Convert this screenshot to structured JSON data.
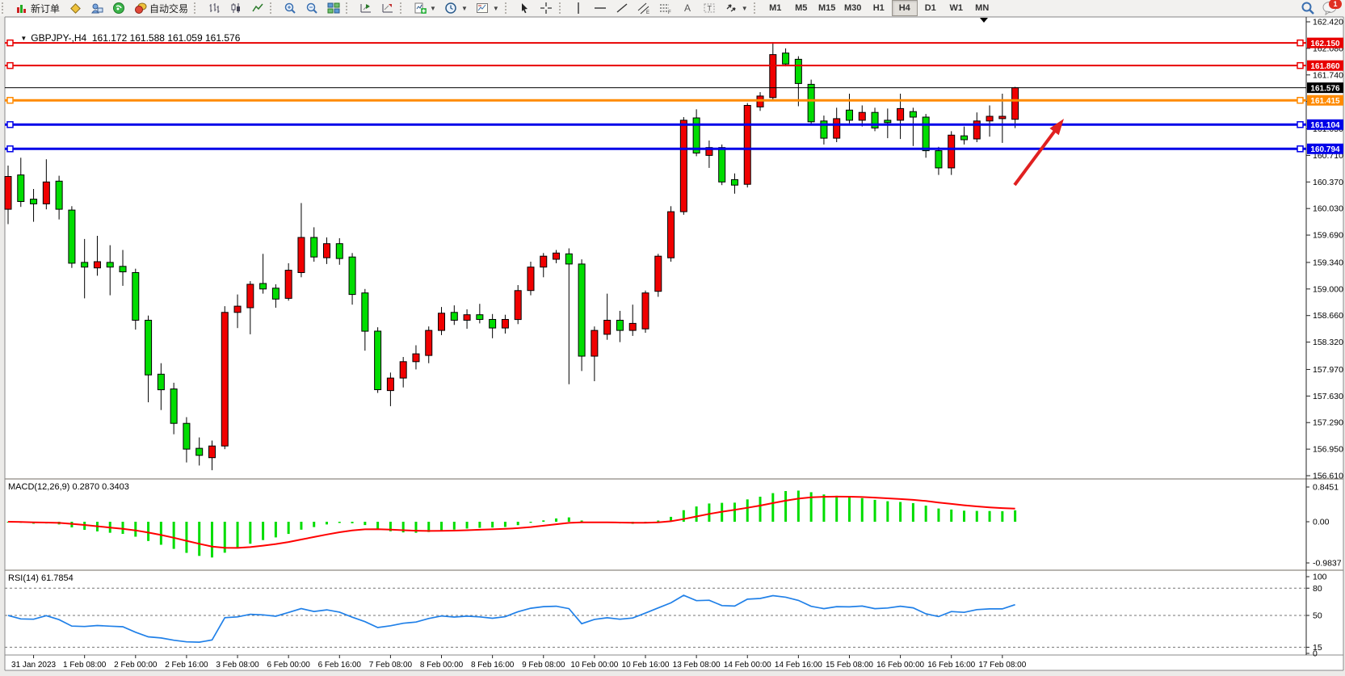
{
  "toolbar": {
    "new_order_label": "新订单",
    "autotrading_label": "自动交易",
    "timeframes": [
      "M1",
      "M5",
      "M15",
      "M30",
      "H1",
      "H4",
      "D1",
      "W1",
      "MN"
    ],
    "active_timeframe": "H4",
    "chat_badge": "1"
  },
  "chart": {
    "title": {
      "symbol": "GBPJPY-,H4",
      "ohlc": "161.172 161.588 161.059 161.576"
    },
    "macd_label": "MACD(12,26,9) 0.2870 0.3403",
    "rsi_label": "RSI(14) 61.7854"
  },
  "chart_data": {
    "type": "candlestick",
    "symbol": "GBPJPY-",
    "timeframe": "H4",
    "title": "GBPJPY- H4 chart with MACD and RSI",
    "ohlc_current": {
      "open": 161.172,
      "high": 161.588,
      "low": 161.059,
      "close": 161.576
    },
    "ylim": [
      156.61,
      162.42
    ],
    "grid": false,
    "bull_color": "#f00000",
    "bear_color": "#00dd00",
    "y_ticks": [
      "162.420",
      "162.080",
      "161.740",
      "161.400",
      "161.050",
      "160.710",
      "160.370",
      "160.030",
      "159.690",
      "159.340",
      "159.000",
      "158.660",
      "158.320",
      "157.970",
      "157.630",
      "157.290",
      "156.950",
      "156.610"
    ],
    "x_labels": [
      "31 Jan 2023",
      "1 Feb 08:00",
      "2 Feb 00:00",
      "2 Feb 16:00",
      "3 Feb 08:00",
      "6 Feb 00:00",
      "6 Feb 16:00",
      "7 Feb 08:00",
      "8 Feb 00:00",
      "8 Feb 16:00",
      "9 Feb 08:00",
      "10 Feb 00:00",
      "10 Feb 16:00",
      "13 Feb 08:00",
      "14 Feb 00:00",
      "14 Feb 16:00",
      "15 Feb 08:00",
      "16 Feb 00:00",
      "16 Feb 16:00",
      "17 Feb 08:00"
    ],
    "x_label_first_candle": 2,
    "x_label_step": 4,
    "candles": [
      [
        160.02,
        160.58,
        159.83,
        160.44
      ],
      [
        160.46,
        160.68,
        160.05,
        160.12
      ],
      [
        160.15,
        160.28,
        159.86,
        160.09
      ],
      [
        160.09,
        160.66,
        160.02,
        160.37
      ],
      [
        160.38,
        160.45,
        159.89,
        160.02
      ],
      [
        160.01,
        160.06,
        159.27,
        159.33
      ],
      [
        159.34,
        159.64,
        158.88,
        159.28
      ],
      [
        159.27,
        159.68,
        159.17,
        159.35
      ],
      [
        159.34,
        159.56,
        158.92,
        159.28
      ],
      [
        159.29,
        159.5,
        159.04,
        159.22
      ],
      [
        159.21,
        159.26,
        158.48,
        158.6
      ],
      [
        158.6,
        158.66,
        157.55,
        157.9
      ],
      [
        157.91,
        158.05,
        157.45,
        157.71
      ],
      [
        157.72,
        157.8,
        157.14,
        157.28
      ],
      [
        157.28,
        157.36,
        156.78,
        156.95
      ],
      [
        156.96,
        157.1,
        156.74,
        156.87
      ],
      [
        156.84,
        157.06,
        156.68,
        156.99
      ],
      [
        156.99,
        158.78,
        156.95,
        158.7
      ],
      [
        158.7,
        158.93,
        158.5,
        158.78
      ],
      [
        158.76,
        159.1,
        158.42,
        159.06
      ],
      [
        159.07,
        159.45,
        158.94,
        159.0
      ],
      [
        159.01,
        159.06,
        158.76,
        158.87
      ],
      [
        158.88,
        159.33,
        158.85,
        159.24
      ],
      [
        159.21,
        160.1,
        159.15,
        159.66
      ],
      [
        159.66,
        159.79,
        159.35,
        159.41
      ],
      [
        159.4,
        159.66,
        159.32,
        159.58
      ],
      [
        159.58,
        159.65,
        159.31,
        159.39
      ],
      [
        159.41,
        159.46,
        158.8,
        158.93
      ],
      [
        158.95,
        159.0,
        158.21,
        158.46
      ],
      [
        158.46,
        158.51,
        157.67,
        157.71
      ],
      [
        157.7,
        157.93,
        157.5,
        157.86
      ],
      [
        157.86,
        158.13,
        157.74,
        158.07
      ],
      [
        158.07,
        158.28,
        157.97,
        158.17
      ],
      [
        158.15,
        158.52,
        158.05,
        158.47
      ],
      [
        158.47,
        158.77,
        158.41,
        158.69
      ],
      [
        158.7,
        158.79,
        158.54,
        158.6
      ],
      [
        158.6,
        158.74,
        158.49,
        158.67
      ],
      [
        158.67,
        158.81,
        158.56,
        158.61
      ],
      [
        158.61,
        158.68,
        158.37,
        158.5
      ],
      [
        158.5,
        158.67,
        158.43,
        158.61
      ],
      [
        158.61,
        159.05,
        158.55,
        158.98
      ],
      [
        158.98,
        159.35,
        158.92,
        159.28
      ],
      [
        159.28,
        159.46,
        159.15,
        159.42
      ],
      [
        159.38,
        159.5,
        159.33,
        159.46
      ],
      [
        159.45,
        159.52,
        157.78,
        159.32
      ],
      [
        159.32,
        159.38,
        157.95,
        158.14
      ],
      [
        158.14,
        158.52,
        157.82,
        158.47
      ],
      [
        158.42,
        158.94,
        158.35,
        158.6
      ],
      [
        158.6,
        158.72,
        158.32,
        158.47
      ],
      [
        158.47,
        158.8,
        158.4,
        158.56
      ],
      [
        158.49,
        158.98,
        158.44,
        158.95
      ],
      [
        158.97,
        159.45,
        158.9,
        159.42
      ],
      [
        159.4,
        160.06,
        159.35,
        159.99
      ],
      [
        159.99,
        161.2,
        159.95,
        161.16
      ],
      [
        161.19,
        161.3,
        160.7,
        160.74
      ],
      [
        160.71,
        160.9,
        160.55,
        160.81
      ],
      [
        160.81,
        160.85,
        160.33,
        160.37
      ],
      [
        160.4,
        160.48,
        160.22,
        160.33
      ],
      [
        160.34,
        161.38,
        160.3,
        161.35
      ],
      [
        161.33,
        161.52,
        161.28,
        161.47
      ],
      [
        161.45,
        162.16,
        161.42,
        162.0
      ],
      [
        162.02,
        162.08,
        161.85,
        161.88
      ],
      [
        161.94,
        161.98,
        161.34,
        161.63
      ],
      [
        161.62,
        161.68,
        161.1,
        161.14
      ],
      [
        161.15,
        161.22,
        160.85,
        160.93
      ],
      [
        160.93,
        161.32,
        160.88,
        161.18
      ],
      [
        161.29,
        161.5,
        161.12,
        161.16
      ],
      [
        161.16,
        161.35,
        161.08,
        161.26
      ],
      [
        161.26,
        161.32,
        161.02,
        161.06
      ],
      [
        161.16,
        161.31,
        160.93,
        161.13
      ],
      [
        161.16,
        161.5,
        160.92,
        161.31
      ],
      [
        161.27,
        161.32,
        160.83,
        161.2
      ],
      [
        161.2,
        161.24,
        160.68,
        160.77
      ],
      [
        160.77,
        160.82,
        160.46,
        160.55
      ],
      [
        160.55,
        161.02,
        160.46,
        160.97
      ],
      [
        160.96,
        161.08,
        160.85,
        160.91
      ],
      [
        160.92,
        161.26,
        160.88,
        161.15
      ],
      [
        161.15,
        161.35,
        160.95,
        161.21
      ],
      [
        161.18,
        161.5,
        160.87,
        161.21
      ],
      [
        161.172,
        161.588,
        161.059,
        161.576
      ]
    ],
    "hlines": [
      {
        "price": 162.15,
        "label": "162.150",
        "color": "#e80000",
        "width": 2
      },
      {
        "price": 161.86,
        "label": "161.860",
        "color": "#e80000",
        "width": 2
      },
      {
        "price": 161.576,
        "label": "161.576",
        "color": "#000000",
        "width": 1,
        "price_line": true
      },
      {
        "price": 161.415,
        "label": "161.415",
        "color": "#ff8a00",
        "width": 3
      },
      {
        "price": 161.104,
        "label": "161.104",
        "color": "#0000e8",
        "width": 3
      },
      {
        "price": 160.794,
        "label": "160.794",
        "color": "#0000e8",
        "width": 3
      }
    ],
    "macd": {
      "params": "12,26,9",
      "current_macd": 0.287,
      "current_signal": 0.3403,
      "scale_max_label": "0.8451",
      "zero_label": "0.00",
      "scale_min_label": "-0.9837",
      "histogram_color": "#00dd00",
      "signal_color": "#ff0000"
    },
    "rsi": {
      "period": 14,
      "current": 61.7854,
      "levels": [
        80,
        50,
        15
      ],
      "axis_labels": [
        "100",
        "80",
        "50",
        "15",
        "0"
      ],
      "line_color": "#2080e8"
    },
    "arrow": {
      "from": [
        1256,
        229
      ],
      "to": [
        1317,
        147
      ],
      "color": "#e02020"
    }
  }
}
